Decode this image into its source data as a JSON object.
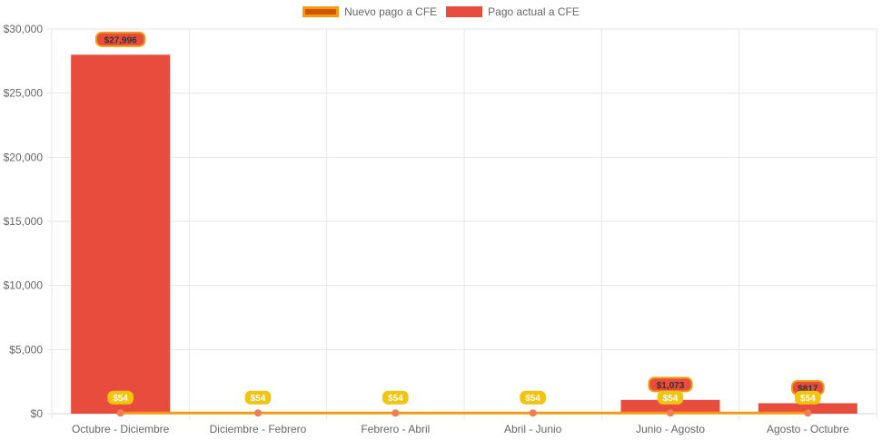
{
  "chart_data": {
    "type": "bar",
    "categories": [
      "Octubre - Diciembre",
      "Diciembre - Febrero",
      "Febrero - Abril",
      "Abril - Junio",
      "Junio - Agosto",
      "Agosto - Octubre"
    ],
    "series": [
      {
        "name": "Nuevo pago a CFE",
        "render": "line",
        "values": [
          54,
          54,
          54,
          54,
          54,
          54
        ],
        "labels": [
          "$54",
          "$54",
          "$54",
          "$54",
          "$54",
          "$54"
        ],
        "color": "#f39c12",
        "fill_color": "#d35400",
        "point_color": "#f07e52",
        "label_bg": "#f1c40f"
      },
      {
        "name": "Pago actual a CFE",
        "render": "bar",
        "values": [
          27996,
          0,
          0,
          0,
          1073,
          817
        ],
        "labels": [
          "$27,996",
          "",
          "",
          "",
          "$1,073",
          "$817"
        ],
        "color": "#e74c3c",
        "label_bg": "#e74c3c",
        "label_border": "#f39c12"
      }
    ],
    "ylim": [
      0,
      30000
    ],
    "yticks": [
      "$0",
      "$5,000",
      "$10,000",
      "$15,000",
      "$20,000",
      "$25,000",
      "$30,000"
    ],
    "ytick_values": [
      0,
      5000,
      10000,
      15000,
      20000,
      25000,
      30000
    ],
    "grid": true,
    "legend_position": "top-center"
  }
}
